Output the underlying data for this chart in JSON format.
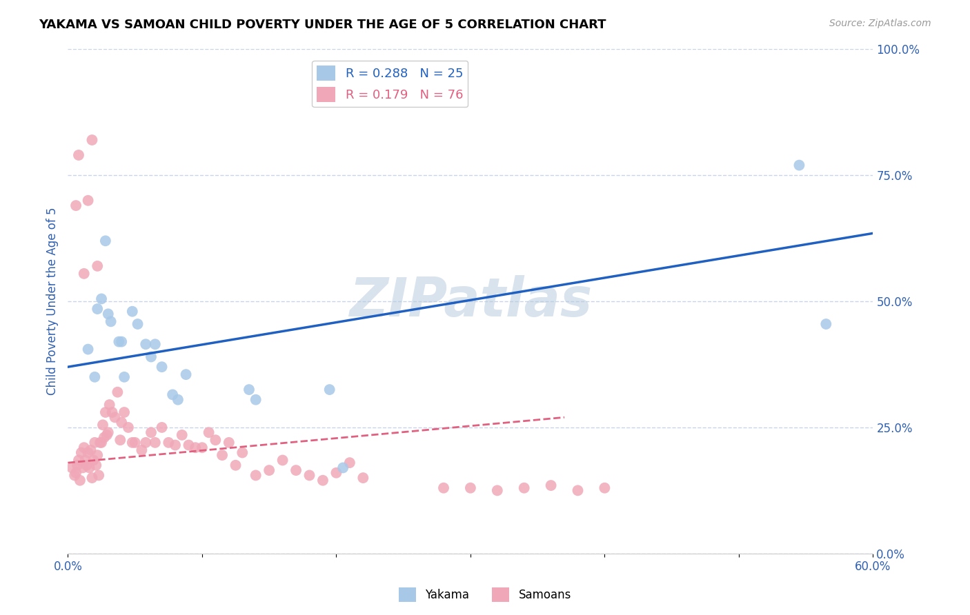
{
  "title": "YAKAMA VS SAMOAN CHILD POVERTY UNDER THE AGE OF 5 CORRELATION CHART",
  "source": "Source: ZipAtlas.com",
  "ylabel": "Child Poverty Under the Age of 5",
  "x_ticks": [
    0.0,
    0.1,
    0.2,
    0.3,
    0.4,
    0.5,
    0.6
  ],
  "x_tick_labels": [
    "0.0%",
    "",
    "",
    "",
    "",
    "",
    "60.0%"
  ],
  "y_ticks": [
    0.0,
    0.25,
    0.5,
    0.75,
    1.0
  ],
  "y_tick_labels_right": [
    "0.0%",
    "25.0%",
    "50.0%",
    "75.0%",
    "100.0%"
  ],
  "legend_labels_bottom": [
    "Yakama",
    "Samoans"
  ],
  "watermark": "ZIPatlas",
  "background_color": "#ffffff",
  "grid_color": "#c8d4e8",
  "yakama_color": "#a8c8e8",
  "samoan_color": "#f0a8b8",
  "yakama_line_color": "#2060c0",
  "samoan_line_color": "#e06080",
  "axis_label_color": "#3060b0",
  "title_color": "#000000",
  "yakama_x": [
    0.015,
    0.02,
    0.022,
    0.025,
    0.028,
    0.03,
    0.032,
    0.038,
    0.04,
    0.042,
    0.048,
    0.052,
    0.058,
    0.062,
    0.065,
    0.07,
    0.078,
    0.082,
    0.088,
    0.135,
    0.195,
    0.205,
    0.545,
    0.565,
    0.14
  ],
  "yakama_y": [
    0.405,
    0.35,
    0.485,
    0.505,
    0.62,
    0.475,
    0.46,
    0.42,
    0.42,
    0.35,
    0.48,
    0.455,
    0.415,
    0.39,
    0.415,
    0.37,
    0.315,
    0.305,
    0.355,
    0.325,
    0.325,
    0.17,
    0.77,
    0.455,
    0.305
  ],
  "samoan_x": [
    0.003,
    0.005,
    0.006,
    0.007,
    0.008,
    0.009,
    0.01,
    0.011,
    0.012,
    0.013,
    0.014,
    0.015,
    0.016,
    0.017,
    0.018,
    0.019,
    0.02,
    0.021,
    0.022,
    0.023,
    0.024,
    0.025,
    0.026,
    0.027,
    0.028,
    0.029,
    0.03,
    0.031,
    0.033,
    0.035,
    0.037,
    0.039,
    0.04,
    0.042,
    0.045,
    0.048,
    0.05,
    0.055,
    0.058,
    0.062,
    0.065,
    0.07,
    0.075,
    0.08,
    0.085,
    0.09,
    0.095,
    0.1,
    0.105,
    0.11,
    0.115,
    0.12,
    0.125,
    0.13,
    0.14,
    0.15,
    0.16,
    0.17,
    0.18,
    0.19,
    0.2,
    0.21,
    0.22,
    0.28,
    0.3,
    0.32,
    0.34,
    0.36,
    0.38,
    0.4,
    0.006,
    0.008,
    0.012,
    0.015,
    0.018,
    0.022
  ],
  "samoan_y": [
    0.17,
    0.155,
    0.16,
    0.175,
    0.185,
    0.145,
    0.2,
    0.17,
    0.21,
    0.185,
    0.175,
    0.2,
    0.17,
    0.205,
    0.15,
    0.185,
    0.22,
    0.175,
    0.195,
    0.155,
    0.22,
    0.22,
    0.255,
    0.23,
    0.28,
    0.235,
    0.24,
    0.295,
    0.28,
    0.27,
    0.32,
    0.225,
    0.26,
    0.28,
    0.25,
    0.22,
    0.22,
    0.205,
    0.22,
    0.24,
    0.22,
    0.25,
    0.22,
    0.215,
    0.235,
    0.215,
    0.21,
    0.21,
    0.24,
    0.225,
    0.195,
    0.22,
    0.175,
    0.2,
    0.155,
    0.165,
    0.185,
    0.165,
    0.155,
    0.145,
    0.16,
    0.18,
    0.15,
    0.13,
    0.13,
    0.125,
    0.13,
    0.135,
    0.125,
    0.13,
    0.69,
    0.79,
    0.555,
    0.7,
    0.82,
    0.57
  ],
  "yakama_line_x": [
    0.0,
    0.6
  ],
  "yakama_line_y": [
    0.37,
    0.635
  ],
  "samoan_line_x": [
    0.0,
    0.37
  ],
  "samoan_line_y": [
    0.18,
    0.27
  ]
}
